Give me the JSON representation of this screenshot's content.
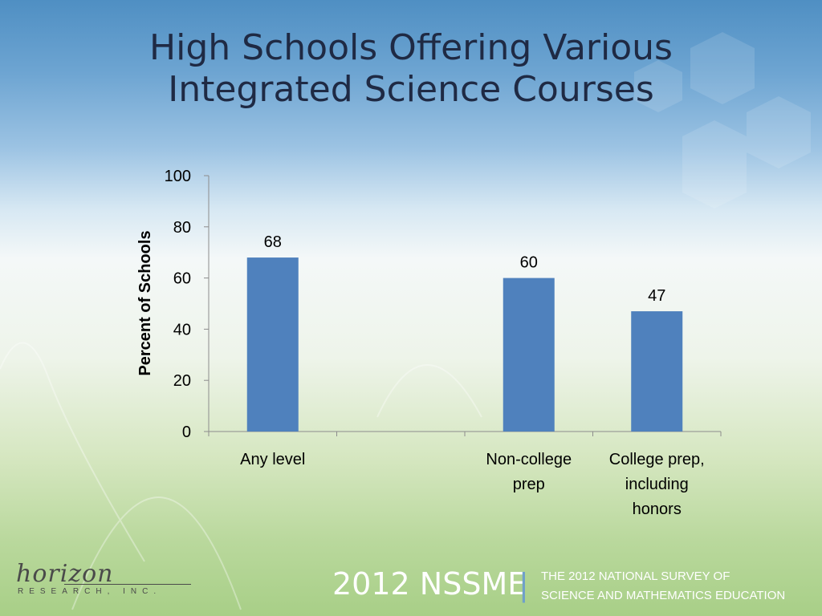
{
  "title_lines": [
    "High Schools Offering Various",
    "Integrated Science Courses"
  ],
  "footer": {
    "brand": "2012 NSSME",
    "bar": "|",
    "survey_lines": [
      "THE 2012 NATIONAL SURVEY OF",
      "SCIENCE AND MATHEMATICS EDUCATION"
    ]
  },
  "logo": {
    "word": "horizon",
    "sub": "RESEARCH, INC."
  },
  "colors": {
    "bar": "#4f81bd",
    "title": "#1f2a44",
    "axis": "#8c8c8c"
  },
  "chart_data": {
    "type": "bar",
    "categories": [
      [
        "Any level"
      ],
      [
        ""
      ],
      [
        "Non-college",
        "prep"
      ],
      [
        "College prep,",
        "including",
        "honors"
      ]
    ],
    "values": [
      68,
      null,
      60,
      47
    ],
    "data_labels": [
      "68",
      "",
      "60",
      "47"
    ],
    "ylabel": "Percent of Schools",
    "ylim": [
      0,
      100
    ],
    "yticks": [
      0,
      20,
      40,
      60,
      80,
      100
    ],
    "grid": false,
    "legend": "none"
  }
}
